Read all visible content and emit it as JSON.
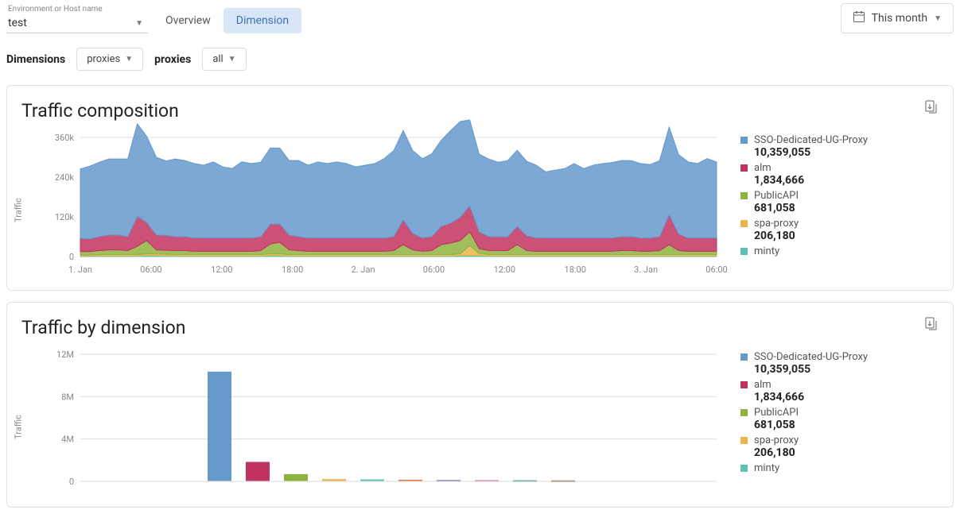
{
  "header": {
    "env_label": "Environment or Host name",
    "env_value": "test",
    "tabs": {
      "overview": "Overview",
      "dimension": "Dimension"
    },
    "date_picker": "This month"
  },
  "filters": {
    "dimensions_label": "Dimensions",
    "dimensions_value": "proxies",
    "proxies_label": "proxies",
    "proxies_value": "all"
  },
  "colors": {
    "sso": "#6699cc",
    "alm": "#c2325f",
    "publicapi": "#8fb33f",
    "spa": "#e9b54a",
    "minty": "#5fc1b3",
    "extra1": "#e57f3d",
    "extra2": "#7c5fb0",
    "extra3": "#d66aa8",
    "extra4": "#2a8a7c",
    "extra5": "#8a5a3a",
    "grid": "#e8e8e8",
    "axis_text": "#888888"
  },
  "legend": [
    {
      "name": "SSO-Dedicated-UG-Proxy",
      "value": "10,359,055",
      "color": "#6699cc"
    },
    {
      "name": "alm",
      "value": "1,834,666",
      "color": "#c2325f"
    },
    {
      "name": "PublicAPI",
      "value": "681,058",
      "color": "#8fb33f"
    },
    {
      "name": "spa-proxy",
      "value": "206,180",
      "color": "#e9b54a"
    },
    {
      "name": "minty",
      "value": "",
      "color": "#5fc1b3"
    }
  ],
  "traffic_composition": {
    "title": "Traffic composition",
    "type": "area",
    "y_label": "Traffic",
    "ylim": [
      0,
      360000
    ],
    "yticks": [
      0,
      120000,
      240000,
      360000
    ],
    "ytick_labels": [
      "0",
      "120k",
      "240k",
      "360k"
    ],
    "x_tick_labels": [
      "1. Jan",
      "06:00",
      "12:00",
      "18:00",
      "2. Jan",
      "06:00",
      "12:00",
      "18:00",
      "3. Jan",
      "06:00"
    ],
    "series": {
      "minty": [
        2,
        2,
        2,
        2,
        2,
        2,
        2,
        3,
        3,
        2,
        2,
        2,
        2,
        2,
        2,
        2,
        2,
        2,
        2,
        2,
        3,
        3,
        2,
        2,
        2,
        2,
        2,
        2,
        2,
        2,
        2,
        2,
        2,
        2,
        2,
        2,
        2,
        2,
        2,
        2,
        3,
        3,
        3,
        2,
        2,
        2,
        2,
        2,
        2,
        2,
        2,
        2,
        2,
        2,
        2,
        2,
        2,
        2,
        2,
        2,
        2,
        2,
        2,
        2,
        2,
        2,
        2,
        2
      ],
      "spa": [
        3,
        3,
        4,
        4,
        4,
        4,
        4,
        5,
        5,
        5,
        4,
        4,
        4,
        4,
        4,
        4,
        4,
        4,
        4,
        4,
        5,
        5,
        4,
        4,
        4,
        4,
        4,
        4,
        4,
        4,
        4,
        4,
        4,
        4,
        4,
        4,
        4,
        4,
        4,
        4,
        5,
        30,
        6,
        4,
        4,
        4,
        4,
        4,
        4,
        4,
        4,
        4,
        4,
        4,
        4,
        4,
        4,
        4,
        4,
        4,
        4,
        4,
        4,
        4,
        4,
        4,
        4,
        4
      ],
      "publicapi": [
        10,
        10,
        12,
        14,
        14,
        12,
        25,
        40,
        12,
        12,
        12,
        12,
        10,
        10,
        10,
        10,
        10,
        10,
        10,
        12,
        30,
        35,
        14,
        12,
        10,
        10,
        10,
        10,
        10,
        10,
        10,
        10,
        10,
        12,
        30,
        14,
        10,
        12,
        30,
        35,
        40,
        42,
        15,
        12,
        12,
        12,
        30,
        12,
        10,
        10,
        10,
        10,
        10,
        10,
        10,
        10,
        10,
        12,
        12,
        10,
        10,
        12,
        30,
        12,
        10,
        10,
        10,
        10
      ],
      "alm": [
        40,
        38,
        42,
        45,
        45,
        42,
        90,
        55,
        45,
        45,
        42,
        42,
        40,
        40,
        40,
        40,
        40,
        40,
        40,
        42,
        60,
        55,
        45,
        42,
        40,
        40,
        40,
        40,
        40,
        40,
        40,
        40,
        40,
        42,
        75,
        50,
        40,
        42,
        55,
        60,
        70,
        78,
        50,
        42,
        42,
        42,
        55,
        45,
        40,
        40,
        40,
        40,
        40,
        40,
        40,
        40,
        40,
        42,
        42,
        40,
        40,
        42,
        90,
        50,
        40,
        40,
        40,
        40
      ],
      "sso": [
        210,
        220,
        225,
        230,
        230,
        235,
        280,
        260,
        235,
        225,
        235,
        230,
        225,
        220,
        230,
        215,
        210,
        230,
        225,
        225,
        230,
        230,
        225,
        230,
        220,
        230,
        225,
        230,
        225,
        215,
        220,
        225,
        240,
        260,
        270,
        250,
        240,
        250,
        260,
        280,
        290,
        260,
        235,
        235,
        225,
        230,
        230,
        225,
        220,
        200,
        205,
        210,
        225,
        210,
        220,
        225,
        228,
        230,
        230,
        225,
        222,
        230,
        265,
        240,
        230,
        225,
        240,
        230
      ]
    }
  },
  "traffic_by_dimension": {
    "title": "Traffic by dimension",
    "type": "bar",
    "y_label": "Traffic",
    "ylim": [
      0,
      12000000
    ],
    "yticks": [
      0,
      4000000,
      8000000,
      12000000
    ],
    "ytick_labels": [
      "0",
      "4M",
      "8M",
      "12M"
    ],
    "bars": [
      {
        "value": 10359055,
        "color": "#6699cc"
      },
      {
        "value": 1834666,
        "color": "#c2325f"
      },
      {
        "value": 681058,
        "color": "#8fb33f"
      },
      {
        "value": 206180,
        "color": "#e9b54a"
      },
      {
        "value": 180000,
        "color": "#5fc1b3"
      },
      {
        "value": 150000,
        "color": "#e57f3d"
      },
      {
        "value": 120000,
        "color": "#7c5fb0"
      },
      {
        "value": 110000,
        "color": "#d66aa8"
      },
      {
        "value": 100000,
        "color": "#2a8a7c"
      },
      {
        "value": 90000,
        "color": "#8a5a3a"
      }
    ]
  }
}
